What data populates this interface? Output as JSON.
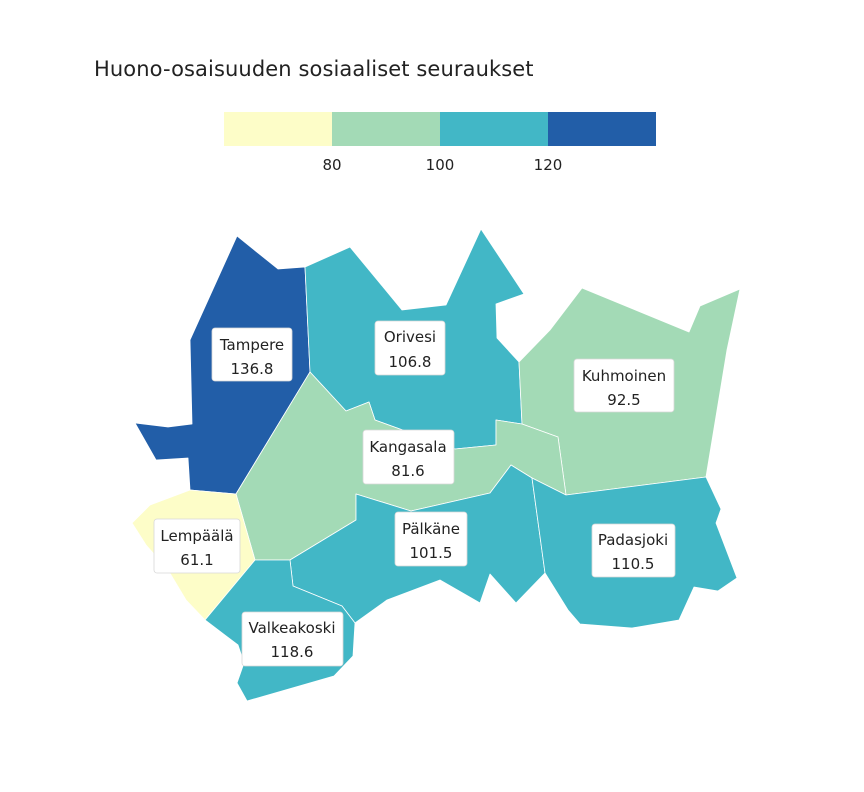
{
  "title": "Huono-osaisuuden sosiaaliset seuraukset",
  "legend": {
    "breaks": [
      80,
      100,
      120
    ],
    "tick_labels": [
      "80",
      "100",
      "120"
    ],
    "colors": [
      "#fdfdc8",
      "#a3dab6",
      "#42b7c6",
      "#225ea8"
    ]
  },
  "regions": [
    {
      "name": "Tampere",
      "value": 136.8,
      "value_label": "136.8",
      "color": "#225ea8"
    },
    {
      "name": "Orivesi",
      "value": 106.8,
      "value_label": "106.8",
      "color": "#42b7c6"
    },
    {
      "name": "Kuhmoinen",
      "value": 92.5,
      "value_label": "92.5",
      "color": "#a3dab6"
    },
    {
      "name": "Kangasala",
      "value": 81.6,
      "value_label": "81.6",
      "color": "#a3dab6"
    },
    {
      "name": "Lempäälä",
      "value": 61.1,
      "value_label": "61.1",
      "color": "#fdfdc8"
    },
    {
      "name": "Pälkäne",
      "value": 101.5,
      "value_label": "101.5",
      "color": "#42b7c6"
    },
    {
      "name": "Padasjoki",
      "value": 110.5,
      "value_label": "110.5",
      "color": "#42b7c6"
    },
    {
      "name": "Valkeakoski",
      "value": 118.6,
      "value_label": "118.6",
      "color": "#42b7c6"
    }
  ]
}
